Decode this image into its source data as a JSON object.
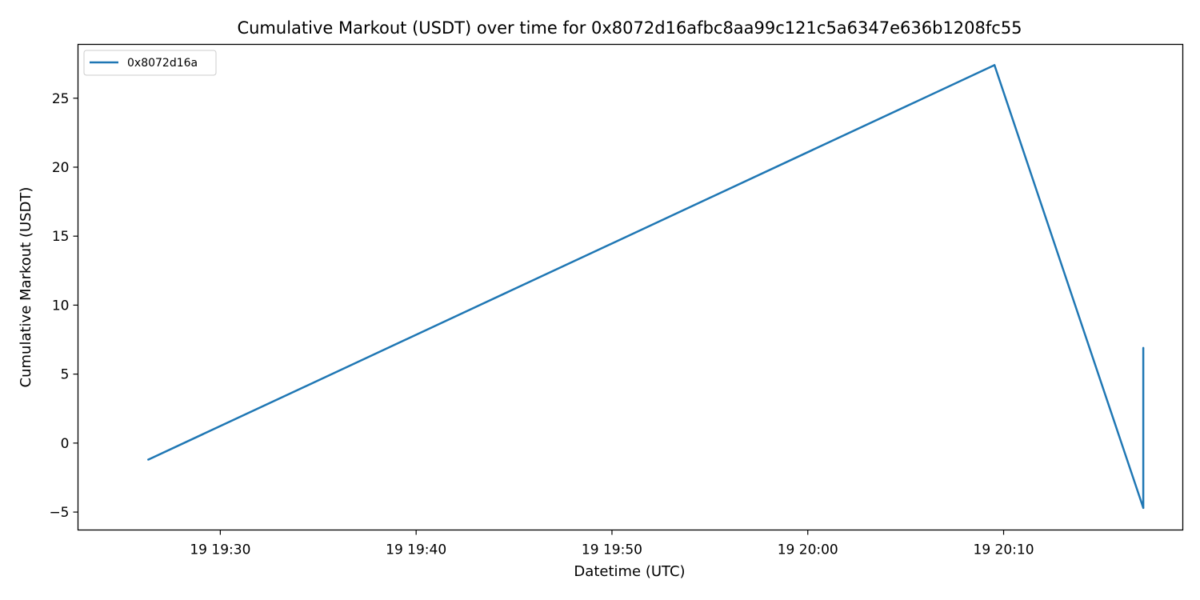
{
  "chart_data": {
    "type": "line",
    "title": "Cumulative Markout (USDT) over time for 0x8072d16afbc8aa99c121c5a6347e636b1208fc55",
    "xlabel": "Datetime (UTC)",
    "ylabel": "Cumulative Markout (USDT)",
    "x_ticks": [
      {
        "value": "19:30",
        "label": "19 19:30"
      },
      {
        "value": "19:40",
        "label": "19 19:40"
      },
      {
        "value": "19:50",
        "label": "19 19:50"
      },
      {
        "value": "20:00",
        "label": "19 20:00"
      },
      {
        "value": "20:10",
        "label": "19 20:10"
      }
    ],
    "y_ticks": [
      -5,
      0,
      5,
      10,
      15,
      20,
      25
    ],
    "xlim": [
      "19:22:44",
      "20:19:09"
    ],
    "ylim": [
      -6.3,
      28.9
    ],
    "grid": false,
    "legend_position": "upper-left",
    "colors": {
      "series": "#1f77b4"
    },
    "series": [
      {
        "name": "0x8072d16a",
        "points": [
          {
            "x": "19:26:19",
            "y": -1.2
          },
          {
            "x": "20:09:32",
            "y": 27.4
          },
          {
            "x": "20:17:08",
            "y": -4.7
          },
          {
            "x": "20:17:08",
            "y": 6.9
          }
        ]
      }
    ]
  }
}
